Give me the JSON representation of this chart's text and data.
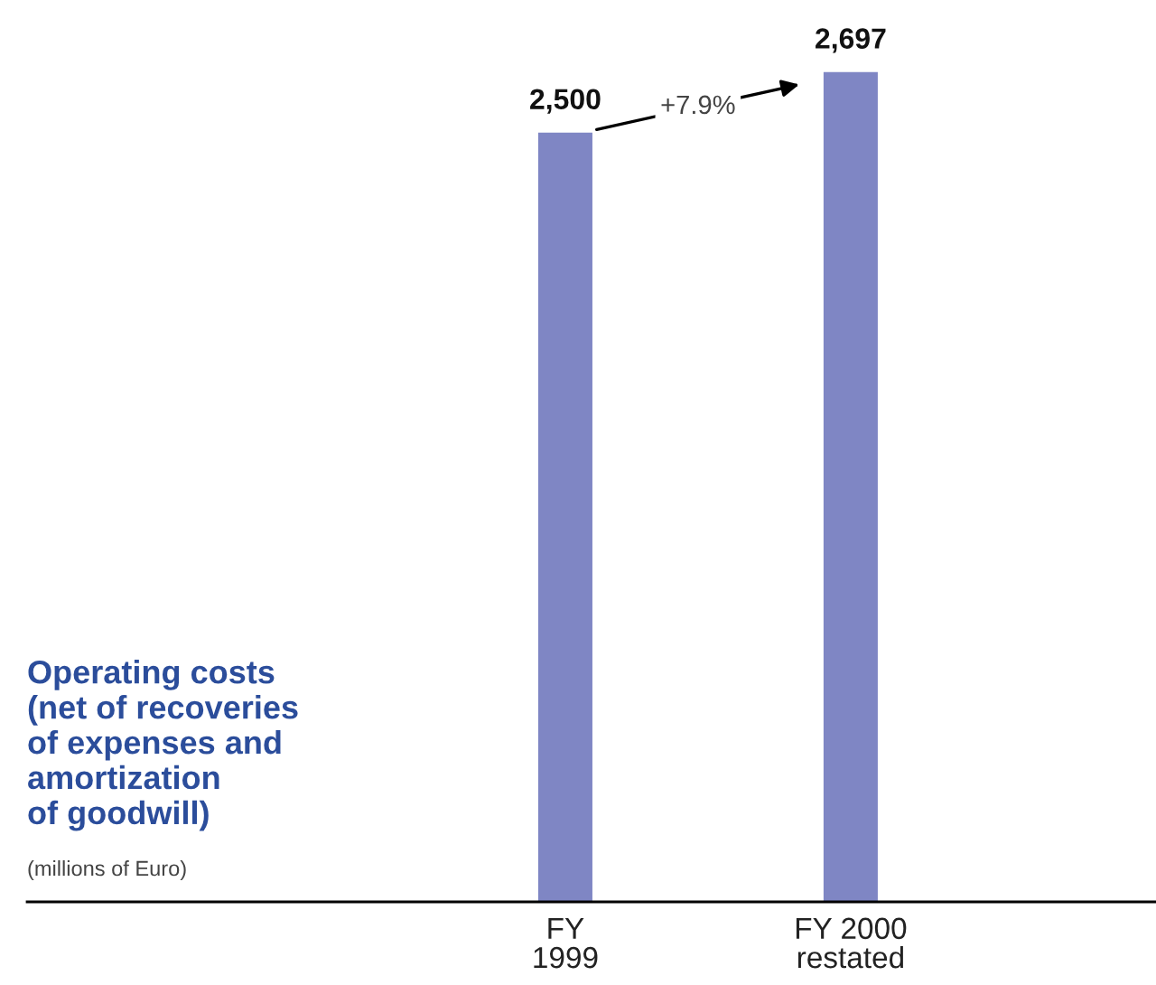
{
  "chart_data": {
    "type": "bar",
    "title": "Operating costs\n(net of recoveries\nof expenses and\namortization\nof goodwill)",
    "subtitle": "(millions of Euro)",
    "categories": [
      "FY\n1999",
      "FY 2000\nrestated"
    ],
    "values": [
      2500,
      2697
    ],
    "value_labels": [
      "2,500",
      "2,697"
    ],
    "color": "#7f86c4",
    "annotations": [
      "+7.9%"
    ]
  }
}
